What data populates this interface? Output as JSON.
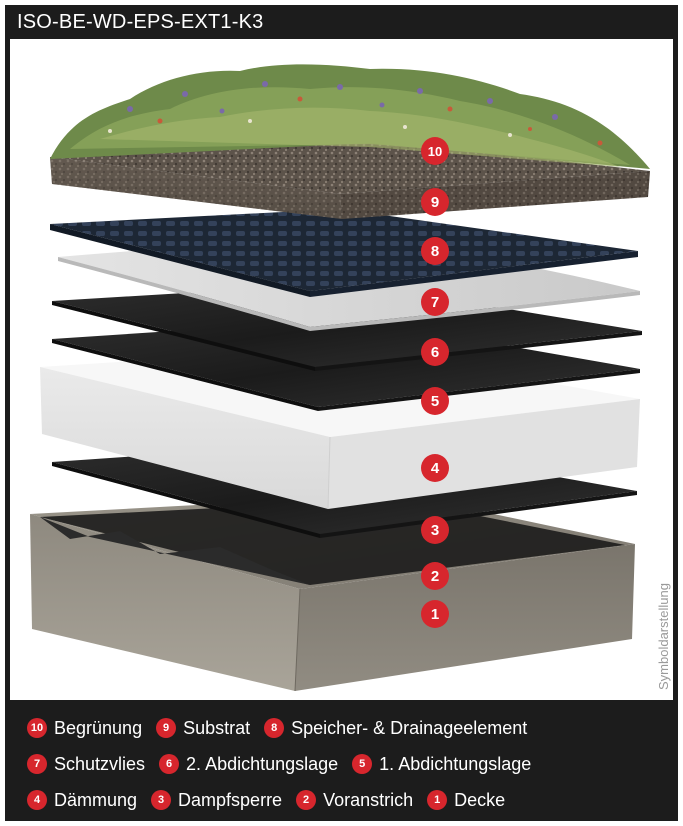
{
  "title": "ISO-BE-WD-EPS-EXT1-K3",
  "side_label": "Symboldarstellung",
  "colors": {
    "frame": "#1c1c1c",
    "badge": "#d7262d",
    "substrate": "#5a4f45",
    "drainage": "#1f2a3a",
    "fleece": "#d7d7d7",
    "membrane": "#222222",
    "insulation": "#f2f2f2",
    "concrete": "#8f8a80"
  },
  "layers": [
    {
      "number": "10",
      "name": "Begrünung"
    },
    {
      "number": "9",
      "name": "Substrat"
    },
    {
      "number": "8",
      "name": "Speicher- & Drainageelement"
    },
    {
      "number": "7",
      "name": "Schutzvlies"
    },
    {
      "number": "6",
      "name": "2. Abdichtungslage"
    },
    {
      "number": "5",
      "name": "1. Abdichtungslage"
    },
    {
      "number": "4",
      "name": "Dämmung"
    },
    {
      "number": "3",
      "name": "Dampfsperre"
    },
    {
      "number": "2",
      "name": "Voranstrich"
    },
    {
      "number": "1",
      "name": "Decke"
    }
  ]
}
